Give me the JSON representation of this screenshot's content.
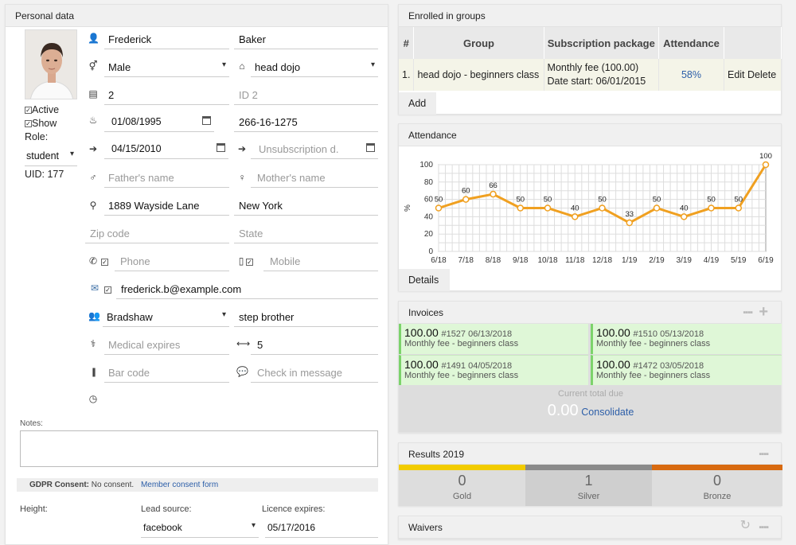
{
  "personal": {
    "header": "Personal data",
    "active_label": "Active",
    "show_label": "Show",
    "role_label": "Role:",
    "role_value": "student",
    "uid": "UID: 177",
    "first_name": "Frederick",
    "last_name": "Baker",
    "gender": "Male",
    "dojo": "head dojo",
    "id1": "2",
    "id2_placeholder": "ID 2",
    "birthdate": "01/08/1995",
    "ssn": "266-16-1275",
    "join_date": "04/15/2010",
    "unsub_placeholder": "Unsubscription d.",
    "father_placeholder": "Father's name",
    "mother_placeholder": "Mother's name",
    "address": "1889 Wayside Lane",
    "city": "New York",
    "zip_placeholder": "Zip code",
    "state_placeholder": "State",
    "phone_placeholder": "Phone",
    "mobile_placeholder": "Mobile",
    "email": "frederick.b@example.com",
    "relative": "Bradshaw",
    "relation": "step brother",
    "medical_placeholder": "Medical expires",
    "range_value": "5",
    "barcode_placeholder": "Bar code",
    "checkin_placeholder": "Check in message",
    "notes_label": "Notes:",
    "gdpr_label": "GDPR Consent:",
    "gdpr_value": "No consent.",
    "gdpr_link": "Member consent form",
    "height_label": "Height:",
    "lead_label": "Lead source:",
    "lead_value": "facebook",
    "licence_label": "Licence expires:",
    "licence_value": "05/17/2016"
  },
  "groups": {
    "header": "Enrolled in groups",
    "columns": [
      "#",
      "Group",
      "Subscription package",
      "Attendance"
    ],
    "rows": [
      {
        "num": "1.",
        "group": "head dojo - beginners class",
        "package": "Monthly fee (100.00)",
        "date": "Date start: 06/01/2015",
        "attendance": "58%",
        "edit": "Edit",
        "delete": "Delete"
      }
    ],
    "add_label": "Add"
  },
  "attendance": {
    "header": "Attendance",
    "details_label": "Details"
  },
  "chart_data": {
    "type": "line",
    "categories": [
      "6/18",
      "7/18",
      "8/18",
      "9/18",
      "10/18",
      "11/18",
      "12/18",
      "1/19",
      "2/19",
      "3/19",
      "4/19",
      "5/19",
      "6/19"
    ],
    "values": [
      50,
      60,
      66,
      50,
      50,
      40,
      50,
      33,
      50,
      40,
      50,
      50,
      100
    ],
    "ylabel": "%",
    "ylim": [
      0,
      100
    ],
    "yticks": [
      0,
      20,
      40,
      60,
      80,
      100
    ],
    "grid": true,
    "color": "#f0a020"
  },
  "invoices": {
    "header": "Invoices",
    "items": [
      {
        "amount": "100.00",
        "num": "#1527 06/13/2018",
        "desc": "Monthly fee - beginners class"
      },
      {
        "amount": "100.00",
        "num": "#1510 05/13/2018",
        "desc": "Monthly fee - beginners class"
      },
      {
        "amount": "100.00",
        "num": "#1491 04/05/2018",
        "desc": "Monthly fee - beginners class"
      },
      {
        "amount": "100.00",
        "num": "#1472 03/05/2018",
        "desc": "Monthly fee - beginners class"
      }
    ],
    "due_label": "Current total due",
    "due_value": "0.00",
    "consolidate_label": "Consolidate"
  },
  "results": {
    "header": "Results 2019",
    "medals": [
      {
        "count": "0",
        "label": "Gold",
        "color": "#f2cc00"
      },
      {
        "count": "1",
        "label": "Silver",
        "color": "#8a8a8a"
      },
      {
        "count": "0",
        "label": "Bronze",
        "color": "#d86a10"
      }
    ]
  },
  "waivers": {
    "header": "Waivers"
  }
}
